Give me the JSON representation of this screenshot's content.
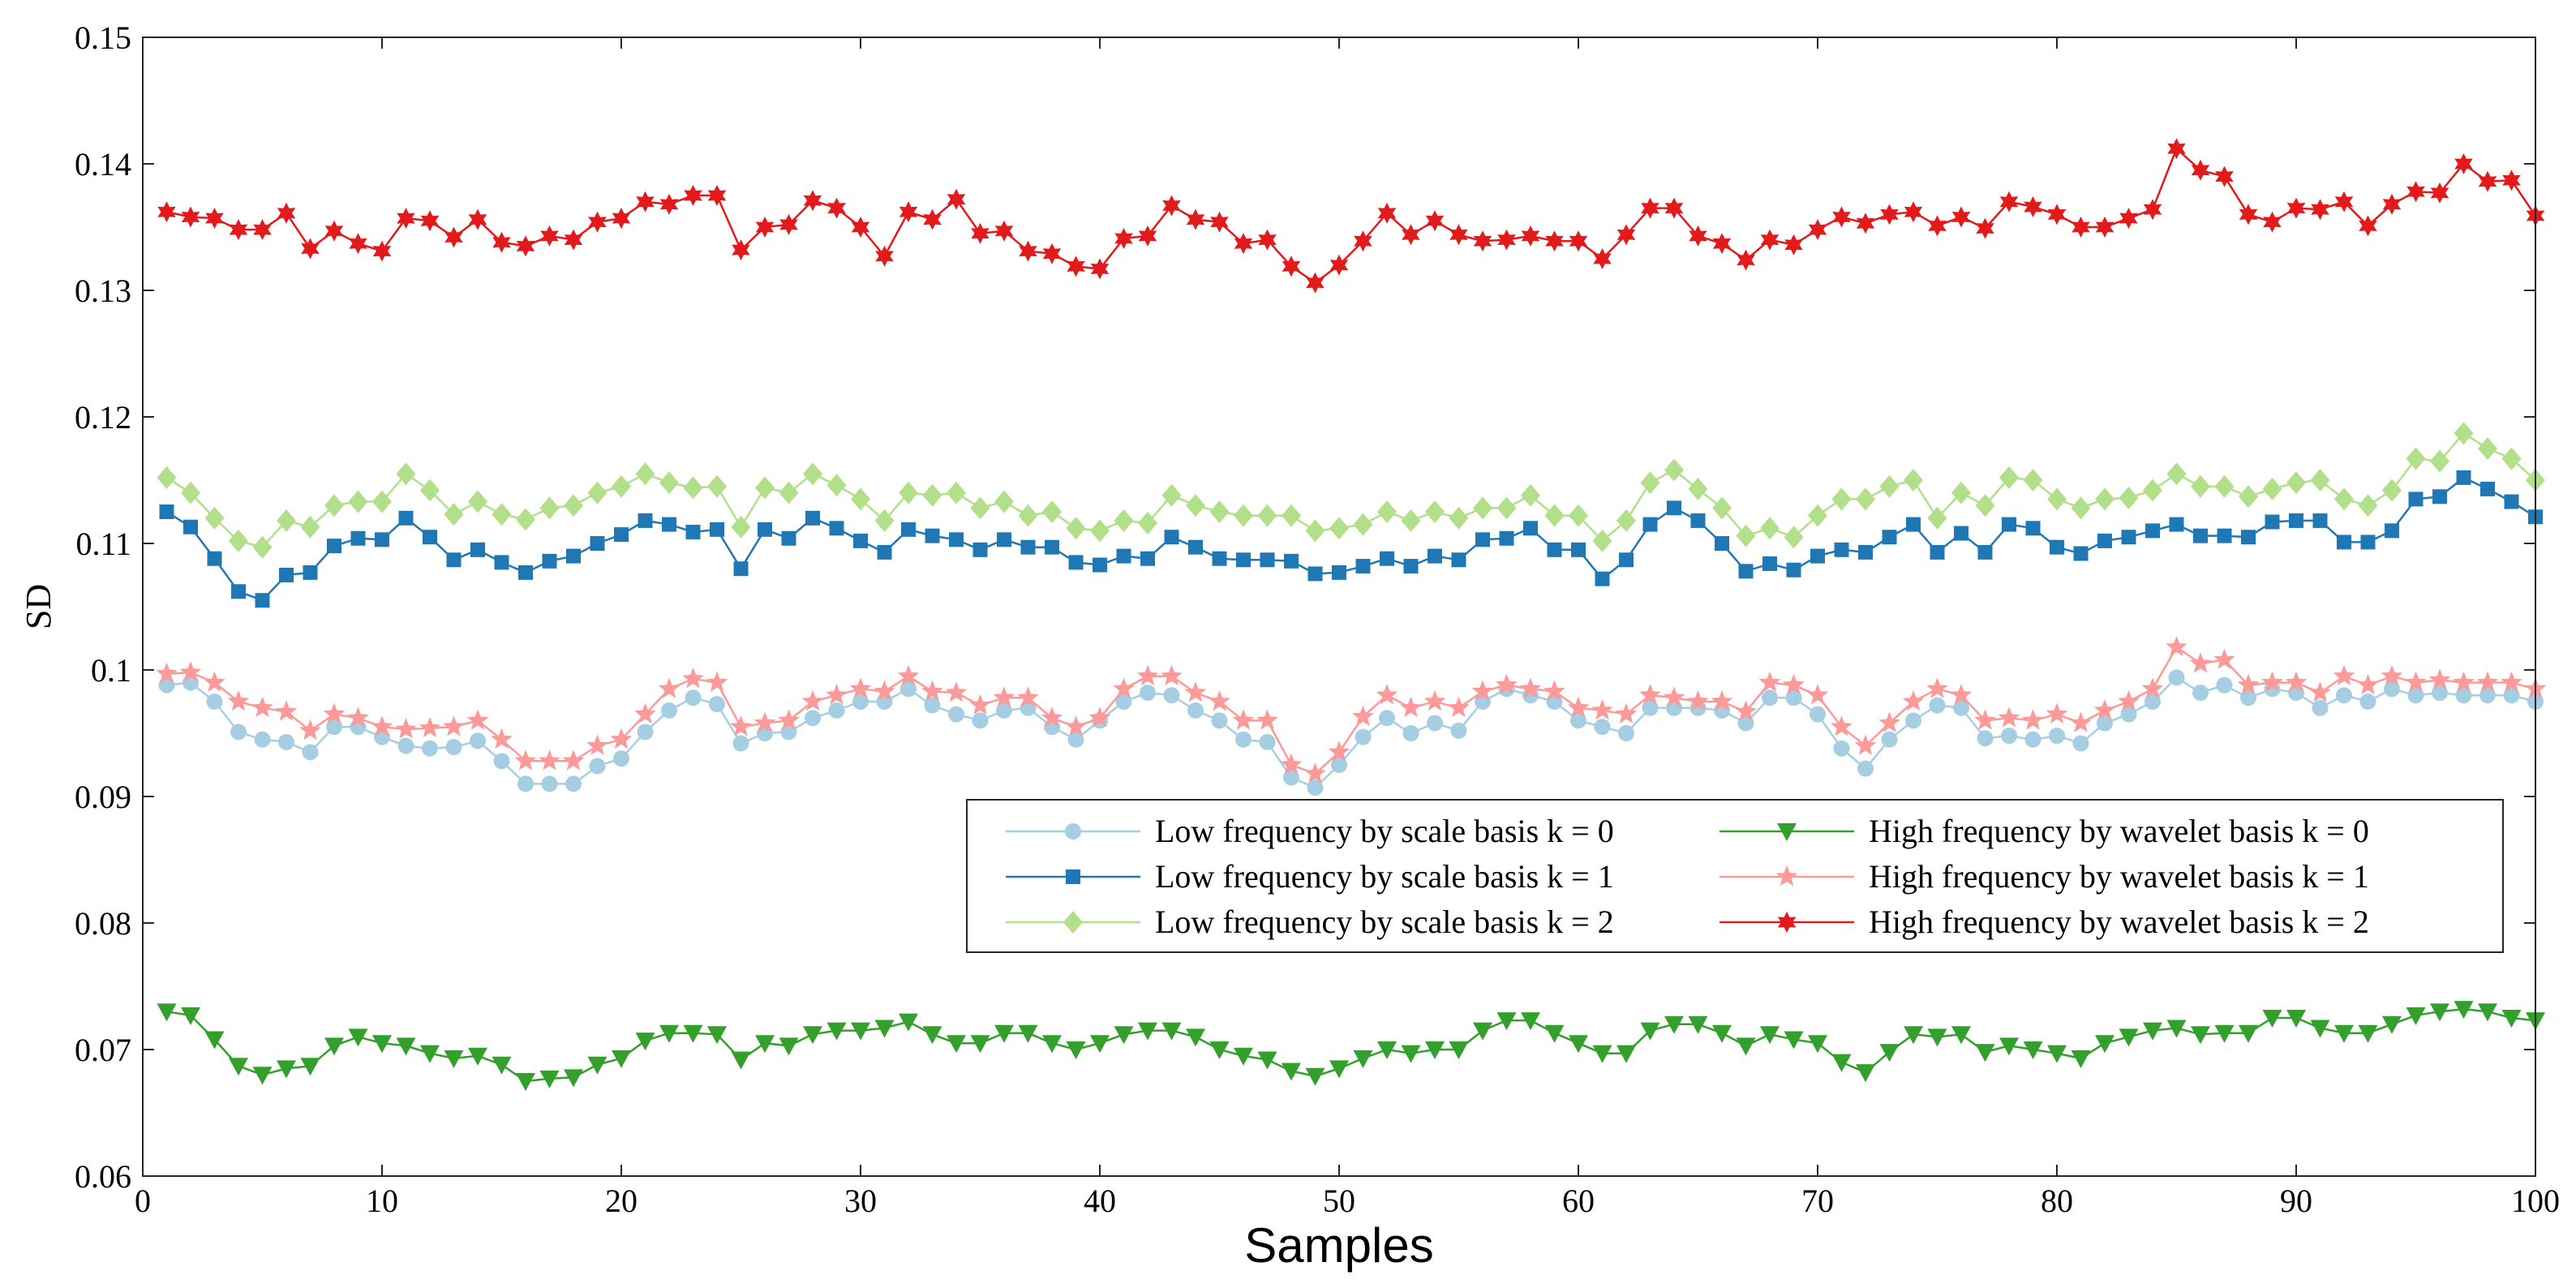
{
  "chart_data": {
    "type": "line",
    "title": "",
    "xlabel": "Samples",
    "ylabel": "SD",
    "xlim": [
      0,
      100
    ],
    "ylim": [
      0.06,
      0.15
    ],
    "xticks": [
      0,
      10,
      20,
      30,
      40,
      50,
      60,
      70,
      80,
      90,
      100
    ],
    "xtick_labels": [
      "0",
      "10",
      "20",
      "30",
      "40",
      "50",
      "60",
      "70",
      "80",
      "90",
      "100"
    ],
    "yticks": [
      0.06,
      0.07,
      0.08,
      0.09,
      0.1,
      0.11,
      0.12,
      0.13,
      0.14,
      0.15
    ],
    "ytick_labels": [
      "0.06",
      "0.07",
      "0.08",
      "0.09",
      "0.1",
      "0.11",
      "0.12",
      "0.13",
      "0.14",
      "0.15"
    ],
    "grid": false,
    "legend_position": "center-right",
    "x": [
      1,
      2,
      3,
      4,
      5,
      6,
      7,
      8,
      9,
      10,
      11,
      12,
      13,
      14,
      15,
      16,
      17,
      18,
      19,
      20,
      21,
      22,
      23,
      24,
      25,
      26,
      27,
      28,
      29,
      30,
      31,
      32,
      33,
      34,
      35,
      36,
      37,
      38,
      39,
      40,
      41,
      42,
      43,
      44,
      45,
      46,
      47,
      48,
      49,
      50,
      51,
      52,
      53,
      54,
      55,
      56,
      57,
      58,
      59,
      60,
      61,
      62,
      63,
      64,
      65,
      66,
      67,
      68,
      69,
      70,
      71,
      72,
      73,
      74,
      75,
      76,
      77,
      78,
      79,
      80,
      81,
      82,
      83,
      84,
      85,
      86,
      87,
      88,
      89,
      90,
      91,
      92,
      93,
      94,
      95,
      96,
      97,
      98,
      99,
      100
    ],
    "series": [
      {
        "name": "Low frequency by scale basis k = 0",
        "color": "#a6cee3",
        "marker": "circle",
        "values": [
          0.0988,
          0.099,
          0.0975,
          0.0951,
          0.0945,
          0.0943,
          0.0935,
          0.0955,
          0.0955,
          0.0947,
          0.094,
          0.0938,
          0.0939,
          0.0944,
          0.0928,
          0.091,
          0.091,
          0.091,
          0.0924,
          0.093,
          0.0951,
          0.0968,
          0.0978,
          0.0973,
          0.0942,
          0.095,
          0.0951,
          0.0962,
          0.0968,
          0.0975,
          0.0975,
          0.0985,
          0.0972,
          0.0965,
          0.096,
          0.0968,
          0.097,
          0.0955,
          0.0945,
          0.096,
          0.0975,
          0.0982,
          0.098,
          0.0968,
          0.096,
          0.0945,
          0.0943,
          0.0915,
          0.0907,
          0.0925,
          0.0947,
          0.0962,
          0.095,
          0.0958,
          0.0952,
          0.0975,
          0.0985,
          0.098,
          0.0975,
          0.096,
          0.0955,
          0.095,
          0.097,
          0.097,
          0.097,
          0.0968,
          0.0958,
          0.0978,
          0.0978,
          0.0965,
          0.0938,
          0.0922,
          0.0945,
          0.096,
          0.0972,
          0.097,
          0.0946,
          0.0948,
          0.0945,
          0.0948,
          0.0942,
          0.0958,
          0.0965,
          0.0975,
          0.0994,
          0.0982,
          0.0988,
          0.0978,
          0.0985,
          0.0982,
          0.097,
          0.098,
          0.0975,
          0.0985,
          0.098,
          0.0982,
          0.098,
          0.098,
          0.098,
          0.0975
        ]
      },
      {
        "name": "Low frequency by scale basis k = 1",
        "color": "#1f78b4",
        "marker": "square",
        "values": [
          0.1125,
          0.1113,
          0.1088,
          0.1062,
          0.1055,
          0.1075,
          0.1077,
          0.1098,
          0.1104,
          0.1103,
          0.112,
          0.1105,
          0.1087,
          0.1095,
          0.1085,
          0.1077,
          0.1086,
          0.109,
          0.11,
          0.1107,
          0.1118,
          0.1115,
          0.1109,
          0.1111,
          0.108,
          0.1111,
          0.1104,
          0.112,
          0.1112,
          0.1102,
          0.1093,
          0.1111,
          0.1106,
          0.1103,
          0.1095,
          0.1103,
          0.1097,
          0.1097,
          0.1085,
          0.1083,
          0.109,
          0.1088,
          0.1105,
          0.1097,
          0.1088,
          0.1087,
          0.1087,
          0.1086,
          0.1076,
          0.1077,
          0.1082,
          0.1088,
          0.1082,
          0.109,
          0.1087,
          0.1103,
          0.1104,
          0.1112,
          0.1095,
          0.1095,
          0.1072,
          0.1087,
          0.1115,
          0.1128,
          0.1118,
          0.11,
          0.1078,
          0.1084,
          0.1079,
          0.109,
          0.1095,
          0.1093,
          0.1105,
          0.1115,
          0.1093,
          0.1108,
          0.1093,
          0.1115,
          0.1112,
          0.1097,
          0.1092,
          0.1102,
          0.1105,
          0.111,
          0.1115,
          0.1106,
          0.1106,
          0.1105,
          0.1117,
          0.1118,
          0.1118,
          0.1101,
          0.1101,
          0.111,
          0.1135,
          0.1137,
          0.1152,
          0.1143,
          0.1133,
          0.1121
        ]
      },
      {
        "name": "Low frequency by scale basis k = 2",
        "color": "#b2df8a",
        "marker": "diamond",
        "values": [
          0.1152,
          0.114,
          0.112,
          0.1102,
          0.1097,
          0.1118,
          0.1113,
          0.113,
          0.1133,
          0.1133,
          0.1155,
          0.1142,
          0.1123,
          0.1133,
          0.1123,
          0.1119,
          0.1128,
          0.113,
          0.114,
          0.1145,
          0.1155,
          0.1148,
          0.1144,
          0.1145,
          0.1113,
          0.1144,
          0.114,
          0.1155,
          0.1146,
          0.1135,
          0.1118,
          0.114,
          0.1138,
          0.114,
          0.1128,
          0.1133,
          0.1122,
          0.1125,
          0.1112,
          0.111,
          0.1118,
          0.1116,
          0.1138,
          0.113,
          0.1125,
          0.1122,
          0.1122,
          0.1122,
          0.111,
          0.1112,
          0.1115,
          0.1125,
          0.1118,
          0.1125,
          0.112,
          0.1128,
          0.1128,
          0.1138,
          0.1122,
          0.1122,
          0.1102,
          0.1118,
          0.1148,
          0.1158,
          0.1143,
          0.1128,
          0.1106,
          0.1112,
          0.1105,
          0.1122,
          0.1135,
          0.1135,
          0.1145,
          0.115,
          0.112,
          0.114,
          0.113,
          0.1152,
          0.115,
          0.1135,
          0.1128,
          0.1135,
          0.1136,
          0.1142,
          0.1155,
          0.1145,
          0.1145,
          0.1137,
          0.1143,
          0.1148,
          0.115,
          0.1135,
          0.113,
          0.1142,
          0.1167,
          0.1165,
          0.1187,
          0.1175,
          0.1167,
          0.115
        ]
      },
      {
        "name": "High frequency by wavelet basis k = 0",
        "color": "#33a02c",
        "marker": "triangle-down",
        "values": [
          0.073,
          0.0727,
          0.0708,
          0.0687,
          0.068,
          0.0685,
          0.0687,
          0.0703,
          0.071,
          0.0705,
          0.0703,
          0.0697,
          0.0693,
          0.0695,
          0.0688,
          0.0675,
          0.0677,
          0.0678,
          0.0688,
          0.0693,
          0.0707,
          0.0713,
          0.0713,
          0.0712,
          0.0692,
          0.0705,
          0.0703,
          0.0712,
          0.0715,
          0.0715,
          0.0717,
          0.0722,
          0.0712,
          0.0705,
          0.0705,
          0.0713,
          0.0713,
          0.0705,
          0.07,
          0.0705,
          0.0712,
          0.0715,
          0.0715,
          0.071,
          0.07,
          0.0695,
          0.0692,
          0.0683,
          0.0679,
          0.0685,
          0.0693,
          0.07,
          0.0697,
          0.07,
          0.07,
          0.0715,
          0.0723,
          0.0723,
          0.0713,
          0.0705,
          0.0697,
          0.0697,
          0.0715,
          0.072,
          0.072,
          0.0713,
          0.0703,
          0.0712,
          0.0708,
          0.0705,
          0.069,
          0.0682,
          0.0698,
          0.0712,
          0.071,
          0.0712,
          0.0698,
          0.0703,
          0.07,
          0.0697,
          0.0693,
          0.0705,
          0.071,
          0.0715,
          0.0717,
          0.0712,
          0.0713,
          0.0713,
          0.0725,
          0.0725,
          0.0717,
          0.0713,
          0.0713,
          0.072,
          0.0727,
          0.073,
          0.0732,
          0.073,
          0.0725,
          0.0723
        ]
      },
      {
        "name": "High frequency by wavelet basis k = 1",
        "color": "#fb9a99",
        "marker": "star5",
        "values": [
          0.0997,
          0.0998,
          0.099,
          0.0975,
          0.097,
          0.0967,
          0.0952,
          0.0965,
          0.0962,
          0.0955,
          0.0953,
          0.0954,
          0.0955,
          0.096,
          0.0945,
          0.0928,
          0.0928,
          0.0928,
          0.094,
          0.0945,
          0.0965,
          0.0985,
          0.0993,
          0.099,
          0.0955,
          0.0958,
          0.096,
          0.0975,
          0.098,
          0.0985,
          0.0983,
          0.0995,
          0.0983,
          0.0982,
          0.0972,
          0.0978,
          0.0978,
          0.0962,
          0.0955,
          0.0962,
          0.0985,
          0.0995,
          0.0995,
          0.0982,
          0.0975,
          0.096,
          0.096,
          0.0925,
          0.0918,
          0.0935,
          0.0963,
          0.098,
          0.097,
          0.0975,
          0.097,
          0.0983,
          0.0988,
          0.0985,
          0.0983,
          0.097,
          0.0968,
          0.0965,
          0.098,
          0.0978,
          0.0975,
          0.0975,
          0.0967,
          0.099,
          0.0988,
          0.098,
          0.0955,
          0.094,
          0.0958,
          0.0975,
          0.0985,
          0.098,
          0.096,
          0.0962,
          0.096,
          0.0965,
          0.0958,
          0.0968,
          0.0975,
          0.0985,
          0.1018,
          0.1005,
          0.1008,
          0.0988,
          0.099,
          0.099,
          0.0982,
          0.0995,
          0.0988,
          0.0995,
          0.099,
          0.0992,
          0.099,
          0.099,
          0.099,
          0.0985
        ]
      },
      {
        "name": "High frequency by wavelet basis k = 2",
        "color": "#e31a1c",
        "marker": "star6",
        "values": [
          0.1362,
          0.1358,
          0.1357,
          0.1348,
          0.1348,
          0.1361,
          0.1333,
          0.1347,
          0.1337,
          0.1331,
          0.1357,
          0.1355,
          0.1342,
          0.1356,
          0.1338,
          0.1335,
          0.1343,
          0.134,
          0.1354,
          0.1357,
          0.137,
          0.1368,
          0.1375,
          0.1375,
          0.1332,
          0.135,
          0.1352,
          0.1371,
          0.1365,
          0.135,
          0.1327,
          0.1362,
          0.1356,
          0.1372,
          0.1345,
          0.1347,
          0.1331,
          0.1329,
          0.1319,
          0.1317,
          0.1341,
          0.1343,
          0.1367,
          0.1356,
          0.1354,
          0.1337,
          0.134,
          0.1319,
          0.1306,
          0.132,
          0.1339,
          0.1361,
          0.1344,
          0.1355,
          0.1344,
          0.1339,
          0.134,
          0.1343,
          0.1339,
          0.1339,
          0.1325,
          0.1344,
          0.1365,
          0.1365,
          0.1343,
          0.1337,
          0.1324,
          0.134,
          0.1336,
          0.1348,
          0.1358,
          0.1353,
          0.136,
          0.1362,
          0.1351,
          0.1358,
          0.1349,
          0.137,
          0.1366,
          0.136,
          0.135,
          0.135,
          0.1357,
          0.1364,
          0.1412,
          0.1395,
          0.139,
          0.136,
          0.1354,
          0.1365,
          0.1364,
          0.137,
          0.1351,
          0.1368,
          0.1378,
          0.1377,
          0.14,
          0.1386,
          0.1387,
          0.1359
        ]
      }
    ],
    "legend_order": [
      0,
      3,
      1,
      4,
      2,
      5
    ]
  }
}
